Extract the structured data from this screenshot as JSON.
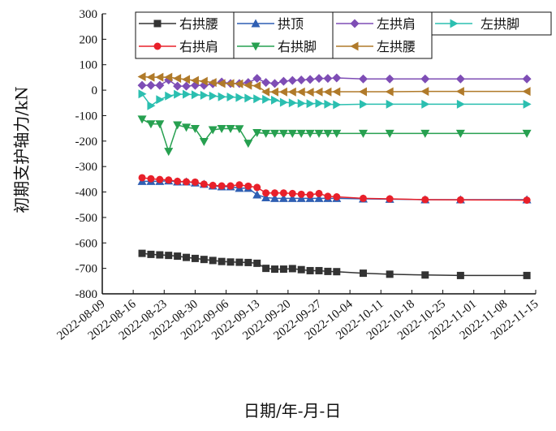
{
  "chart_data": {
    "type": "line",
    "title": "",
    "xlabel": "日期/年-月-日",
    "ylabel": "初期支护轴力/kN",
    "ylim": [
      -800,
      300
    ],
    "yticks": [
      "300",
      "200",
      "100",
      "0",
      "-100",
      "-200",
      "-300",
      "-400",
      "-500",
      "-600",
      "-700",
      "-800"
    ],
    "xlim": [
      "2022-08-09",
      "2022-11-15"
    ],
    "xticks": [
      "2022-08-09",
      "2022-08-16",
      "2022-08-23",
      "2022-08-30",
      "2022-09-06",
      "2022-09-13",
      "2022-09-20",
      "2022-09-27",
      "2022-10-04",
      "2022-10-11",
      "2022-10-18",
      "2022-10-25",
      "2022-11-01",
      "2022-11-08",
      "2022-11-15"
    ],
    "grid": false,
    "legend_position": "top",
    "x": [
      "2022-08-18",
      "2022-08-20",
      "2022-08-22",
      "2022-08-24",
      "2022-08-26",
      "2022-08-28",
      "2022-08-30",
      "2022-09-01",
      "2022-09-03",
      "2022-09-05",
      "2022-09-07",
      "2022-09-09",
      "2022-09-11",
      "2022-09-13",
      "2022-09-15",
      "2022-09-17",
      "2022-09-19",
      "2022-09-21",
      "2022-09-23",
      "2022-09-25",
      "2022-09-27",
      "2022-09-29",
      "2022-10-01",
      "2022-10-07",
      "2022-10-13",
      "2022-10-21",
      "2022-10-29",
      "2022-11-13"
    ],
    "series": [
      {
        "name": "右拱腰",
        "color": "#333333",
        "marker": "square",
        "values": [
          -641,
          -645,
          -647,
          -649,
          -652,
          -657,
          -661,
          -665,
          -669,
          -673,
          -675,
          -676,
          -677,
          -680,
          -700,
          -703,
          -703,
          -701,
          -705,
          -709,
          -709,
          -712,
          -713,
          -719,
          -723,
          -726,
          -728,
          -728
        ]
      },
      {
        "name": "拱顶",
        "color": "#2f5fb3",
        "marker": "triangle-up",
        "values": [
          -358,
          -358,
          -358,
          -356,
          -360,
          -360,
          -364,
          -369,
          -376,
          -379,
          -379,
          -385,
          -385,
          -411,
          -422,
          -425,
          -425,
          -425,
          -425,
          -425,
          -425,
          -425,
          -425,
          -427,
          -428,
          -430,
          -430,
          -430
        ]
      },
      {
        "name": "左拱肩",
        "color": "#7e4db5",
        "marker": "diamond",
        "values": [
          19,
          19,
          19,
          40,
          16,
          16,
          19,
          19,
          25,
          32,
          26,
          26,
          30,
          46,
          30,
          26,
          35,
          38,
          40,
          42,
          46,
          46,
          48,
          44,
          44,
          44,
          44,
          44
        ]
      },
      {
        "name": "左拱脚",
        "color": "#2bbfb0",
        "marker": "triangle-right",
        "values": [
          -15,
          -61,
          -37,
          -23,
          -16,
          -16,
          -18,
          -20,
          -23,
          -26,
          -27,
          -29,
          -31,
          -34,
          -36,
          -39,
          -48,
          -50,
          -52,
          -53,
          -52,
          -55,
          -57,
          -55,
          -55,
          -55,
          -55,
          -55
        ]
      },
      {
        "name": "右拱肩",
        "color": "#e8202a",
        "marker": "circle",
        "values": [
          -344,
          -348,
          -351,
          -353,
          -358,
          -360,
          -361,
          -369,
          -374,
          -376,
          -376,
          -372,
          -377,
          -382,
          -404,
          -404,
          -404,
          -406,
          -409,
          -411,
          -406,
          -417,
          -419,
          -425,
          -427,
          -430,
          -431,
          -432
        ]
      },
      {
        "name": "右拱脚",
        "color": "#27a050",
        "marker": "triangle-down",
        "values": [
          -114,
          -133,
          -133,
          -241,
          -137,
          -146,
          -151,
          -202,
          -156,
          -151,
          -151,
          -152,
          -209,
          -167,
          -170,
          -170,
          -170,
          -170,
          -170,
          -170,
          -170,
          -170,
          -170,
          -170,
          -170,
          -170,
          -170,
          -170
        ]
      },
      {
        "name": "左拱腰",
        "color": "#b07a2a",
        "marker": "triangle-left",
        "values": [
          53,
          51,
          51,
          51,
          46,
          42,
          38,
          35,
          30,
          26,
          26,
          25,
          19,
          17,
          -7,
          -7,
          -7,
          -7,
          -7,
          -8,
          -7,
          -7,
          -6,
          -6,
          -6,
          -5,
          -5,
          -5
        ]
      }
    ]
  }
}
